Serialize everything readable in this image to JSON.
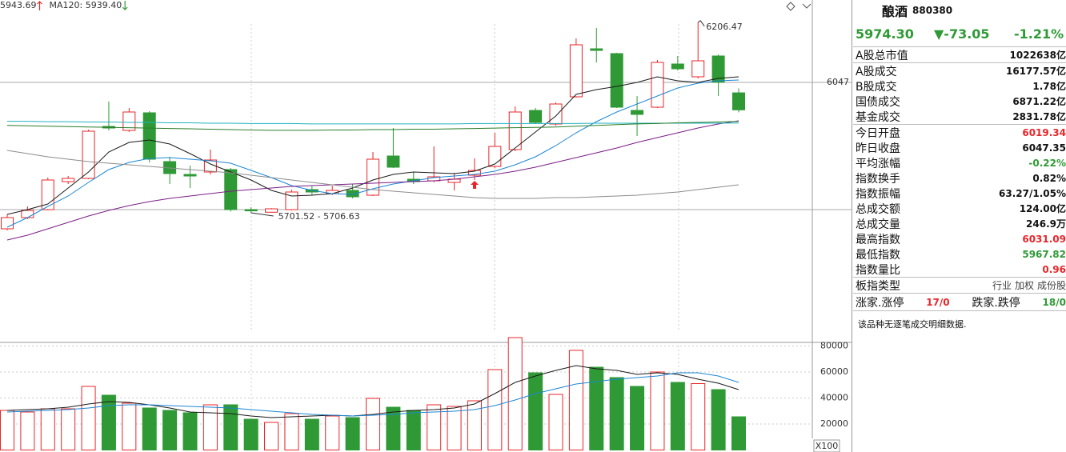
{
  "chart_data": [
    {
      "type": "candlestick",
      "categories": [
        null,
        null,
        null,
        null,
        null,
        null,
        null,
        null,
        null,
        null,
        null,
        null,
        null,
        null,
        null,
        null,
        null,
        null,
        null,
        null,
        null,
        null,
        null,
        null,
        null,
        null,
        null,
        null,
        null,
        null,
        null,
        null,
        null,
        null,
        null,
        null,
        null
      ],
      "open": [
        5659.1,
        5688.8,
        5709.9,
        5784.1,
        5792.6,
        5930.4,
        5919.8,
        5966.5,
        5837.2,
        5803.2,
        5809.6,
        5816.0,
        5710.0,
        5703.0,
        5709.9,
        5763.0,
        5752.4,
        5760.8,
        5748.1,
        5852.0,
        5790.5,
        5786.3,
        5782.0,
        5801.1,
        5824.4,
        5869.0,
        5972.8,
        5936.8,
        6008.9,
        6136.1,
        6123.4,
        5972.8,
        5981.3,
        6095.8,
        6061.9,
        6117.0,
        6019.34
      ],
      "high": [
        5697.2,
        5718.4,
        5794.8,
        5799.0,
        5921.9,
        5996.2,
        5979.2,
        5970.7,
        5849.9,
        5826.6,
        5869.0,
        5820.2,
        5716.3,
        5714.0,
        5763.0,
        5773.6,
        5773.6,
        5777.8,
        5862.6,
        5926.2,
        5809.6,
        5877.4,
        5807.5,
        5845.6,
        5913.5,
        5983.4,
        5979.2,
        5994.0,
        6163.6,
        6191.2,
        6125.5,
        6011.0,
        6106.4,
        6117.0,
        6206.47,
        6121.2,
        6031.09
      ],
      "low": [
        5654.8,
        5684.5,
        5707.8,
        5777.8,
        5790.5,
        5919.8,
        5915.6,
        5835.0,
        5777.8,
        5767.2,
        5803.2,
        5705.0,
        5701.52,
        5702.0,
        5707.8,
        5748.1,
        5748.1,
        5739.6,
        5746.0,
        5820.2,
        5777.8,
        5782.0,
        5760.8,
        5788.4,
        5820.2,
        5864.7,
        5936.8,
        5932.6,
        6006.8,
        6100.0,
        5979.2,
        5905.0,
        5979.2,
        6078.8,
        6057.6,
        6011.0,
        5967.82
      ],
      "close": [
        5688.8,
        5707.8,
        5788.4,
        5792.6,
        5917.7,
        5926.2,
        5968.6,
        5843.5,
        5805.4,
        5799.0,
        5841.4,
        5709.9,
        5706.6,
        5712.0,
        5756.6,
        5756.6,
        5760.8,
        5743.9,
        5843.5,
        5822.3,
        5784.1,
        5796.9,
        5790.5,
        5813.8,
        5877.4,
        5968.6,
        5941.0,
        5989.8,
        6146.7,
        6131.8,
        5981.3,
        5962.2,
        6100.0,
        6083.1,
        6104.3,
        6047.35,
        5974.3
      ],
      "up_color": "#e8262a",
      "down_color": "#2f9a35",
      "series": [
        {
          "color": "#1a1a1a",
          "values": [
            5697.2,
            5709.9,
            5724.8,
            5767.2,
            5809.6,
            5862.6,
            5888.0,
            5894.4,
            5883.8,
            5858.4,
            5830.8,
            5809.6,
            5788.4,
            5760.8,
            5746.0,
            5748.1,
            5752.4,
            5767.2,
            5788.4,
            5803.2,
            5809.6,
            5807.5,
            5805.4,
            5811.7,
            5830.8,
            5873.2,
            5915.6,
            5958.0,
            6015.2,
            6028.0,
            6036.4,
            6047.0,
            6061.9,
            6051.2,
            6047.0,
            6057.6,
            6061.9
          ]
        },
        {
          "color": "#1b86d4",
          "values": [
            5663.3,
            5688.8,
            5718.4,
            5746.0,
            5782.0,
            5816.0,
            5835.0,
            5845.6,
            5847.8,
            5843.5,
            5839.3,
            5832.9,
            5813.8,
            5794.8,
            5773.6,
            5760.8,
            5752.4,
            5750.2,
            5765.1,
            5777.8,
            5786.3,
            5794.8,
            5799.0,
            5803.2,
            5811.7,
            5828.7,
            5849.9,
            5879.6,
            5913.5,
            5943.2,
            5968.6,
            5989.8,
            6011.0,
            6032.2,
            6044.9,
            6051.2,
            6053.4
          ]
        },
        {
          "color": "#7b1e86",
          "values": [
            5629.4,
            5642.1,
            5659.1,
            5676.0,
            5693.0,
            5707.8,
            5720.6,
            5731.2,
            5739.6,
            5746.0,
            5752.4,
            5758.7,
            5763.0,
            5767.2,
            5771.4,
            5773.6,
            5775.7,
            5777.8,
            5779.9,
            5782.0,
            5784.1,
            5786.3,
            5790.5,
            5796.9,
            5803.2,
            5811.7,
            5822.3,
            5835.0,
            5847.8,
            5860.5,
            5873.2,
            5888.0,
            5900.8,
            5913.5,
            5926.2,
            5936.8,
            5945.3
          ]
        },
        {
          "color": "#8c8c8c",
          "values": [
            5866.8,
            5858.4,
            5849.9,
            5843.5,
            5837.2,
            5832.9,
            5828.7,
            5824.4,
            5820.2,
            5816.0,
            5811.7,
            5807.5,
            5801.1,
            5794.8,
            5788.4,
            5782.0,
            5775.7,
            5769.3,
            5763.0,
            5758.7,
            5754.5,
            5750.2,
            5746.0,
            5741.8,
            5739.6,
            5739.6,
            5739.6,
            5741.8,
            5741.8,
            5743.9,
            5746.0,
            5748.1,
            5752.4,
            5756.6,
            5763.0,
            5769.3,
            5775.7
          ]
        },
        {
          "color": "#22b3c2",
          "values": [
            5944,
            5944,
            5943,
            5943,
            5942,
            5942,
            5941,
            5941,
            5940,
            5940,
            5939,
            5939,
            5938,
            5938,
            5938,
            5937,
            5937,
            5937,
            5937,
            5937,
            5937,
            5937,
            5937,
            5938,
            5938,
            5938,
            5938,
            5938,
            5938,
            5939,
            5939,
            5939,
            5939,
            5939,
            5939,
            5939,
            5939.4
          ]
        },
        {
          "color": "#2a7d2a",
          "values": [
            5933,
            5932,
            5931,
            5930,
            5929,
            5928,
            5927,
            5926,
            5925,
            5924,
            5923,
            5922,
            5921,
            5920,
            5920,
            5920,
            5921,
            5921,
            5922,
            5922,
            5923,
            5923,
            5924,
            5925,
            5926,
            5927,
            5928,
            5929,
            5931,
            5933,
            5935,
            5937,
            5938,
            5940,
            5941,
            5942,
            5943.69
          ]
        }
      ],
      "legend": [
        {
          "text": "5943.69",
          "color": "#2a7d2a",
          "trend": "up"
        },
        {
          "text": "MA120: 5939.40",
          "color": "#22b3c2",
          "trend": "down"
        }
      ],
      "annotations": [
        "6206.47",
        "5701.52 - 5706.63"
      ],
      "ylim": [
        5385.6,
        6265.4
      ],
      "yticks": [
        6047
      ]
    },
    {
      "type": "bar",
      "categories": [
        null,
        null,
        null,
        null,
        null,
        null,
        null,
        null,
        null,
        null,
        null,
        null,
        null,
        null,
        null,
        null,
        null,
        null,
        null,
        null,
        null,
        null,
        null,
        null,
        null,
        null,
        null,
        null,
        null,
        null,
        null,
        null,
        null,
        null,
        null,
        null,
        null
      ],
      "values": [
        30460,
        29230,
        31690,
        31690,
        48920,
        42150,
        36000,
        32310,
        30460,
        28620,
        34770,
        34770,
        23690,
        21230,
        28000,
        23690,
        26150,
        24920,
        39690,
        32920,
        30460,
        34770,
        33540,
        37850,
        61850,
        86460,
        59380,
        42770,
        76620,
        63690,
        55690,
        48920,
        60000,
        52000,
        51080,
        46460,
        25540
      ],
      "series": [
        {
          "color": "#1a1a1a",
          "values": [
            30460,
            31080,
            31690,
            32920,
            35380,
            37230,
            36620,
            34770,
            32310,
            29230,
            28620,
            28000,
            26150,
            24920,
            25540,
            26150,
            26770,
            26150,
            27380,
            29230,
            30460,
            31080,
            32310,
            35380,
            43390,
            52000,
            56920,
            61230,
            64920,
            62460,
            61230,
            58150,
            59380,
            58150,
            54460,
            51390,
            46460
          ]
        },
        {
          "color": "#1b86d4",
          "values": [
            29230,
            29850,
            30460,
            31080,
            32310,
            34150,
            34770,
            34770,
            34150,
            33540,
            32920,
            32310,
            31080,
            29850,
            28620,
            27380,
            26770,
            26150,
            26770,
            27380,
            28620,
            29230,
            29850,
            31080,
            34150,
            38460,
            43390,
            47080,
            50770,
            52620,
            54460,
            55690,
            56920,
            59380,
            59380,
            56920,
            52000
          ]
        }
      ],
      "unit_label": "X100",
      "ylim": [
        0,
        88000
      ],
      "yticks": [
        20000,
        40000,
        60000,
        80000
      ],
      "grid": true
    }
  ],
  "quote_panel": {
    "name": "酿酒",
    "code": "880380",
    "price": "5974.30",
    "change": "▼-73.05",
    "change_pct": "-1.21%",
    "rows": [
      {
        "label": "A股总市值",
        "value": "1022638亿",
        "color": "#111111"
      },
      {
        "label": "A股成交",
        "value": "16177.57亿",
        "color": "#111111"
      },
      {
        "label": "B股成交",
        "value": "1.78亿",
        "color": "#111111"
      },
      {
        "label": "国债成交",
        "value": "6871.22亿",
        "color": "#111111"
      },
      {
        "label": "基金成交",
        "value": "2831.78亿",
        "color": "#111111"
      },
      {
        "label": "今日开盘",
        "value": "6019.34",
        "color": "#e8262a"
      },
      {
        "label": "昨日收盘",
        "value": "6047.35",
        "color": "#111111"
      },
      {
        "label": "平均涨幅",
        "value": "-0.22%",
        "color": "#2f9a35"
      },
      {
        "label": "指数换手",
        "value": "0.82%",
        "color": "#111111"
      },
      {
        "label": "指数振幅",
        "value": "63.27/1.05%",
        "color": "#111111"
      },
      {
        "label": "总成交额",
        "value": "124.00亿",
        "color": "#111111"
      },
      {
        "label": "总成交量",
        "value": "246.9万",
        "color": "#111111"
      },
      {
        "label": "最高指数",
        "value": "6031.09",
        "color": "#e8262a"
      },
      {
        "label": "最低指数",
        "value": "5967.82",
        "color": "#2f9a35"
      },
      {
        "label": "指数量比",
        "value": "0.96",
        "color": "#e8262a"
      }
    ],
    "index_type": {
      "label": "板指类型",
      "options": [
        "行业",
        "加权",
        "成份股"
      ]
    },
    "breadth": {
      "up_label": "涨家.涨停",
      "up_value": "17/0",
      "down_label": "跌家.跌停",
      "down_value": "18/0"
    },
    "note": "该品种无逐笔成交明细数据."
  }
}
